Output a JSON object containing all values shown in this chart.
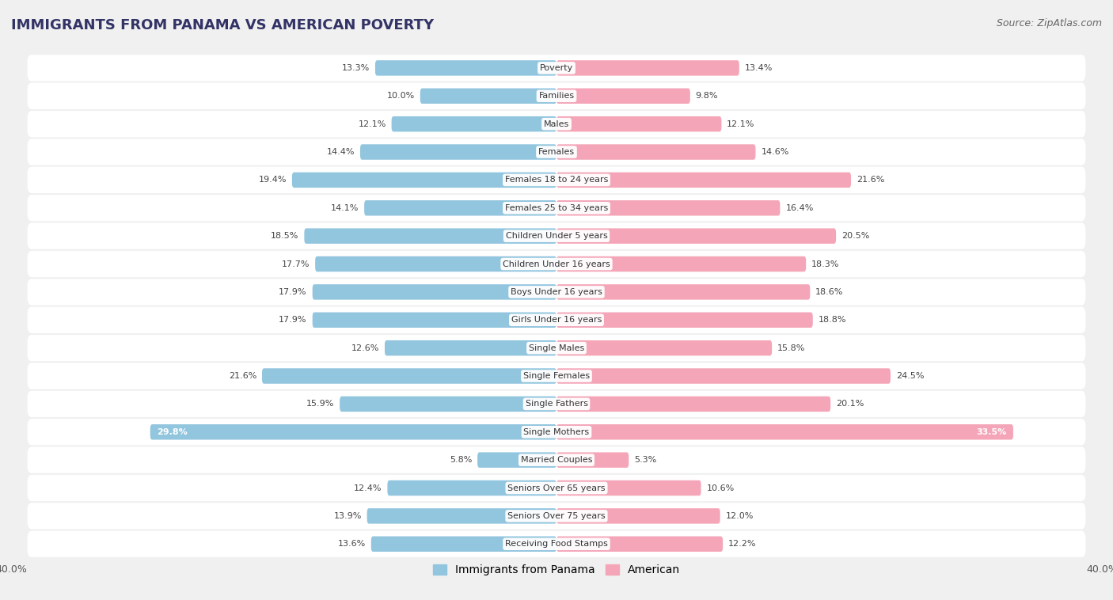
{
  "title": "IMMIGRANTS FROM PANAMA VS AMERICAN POVERTY",
  "source": "Source: ZipAtlas.com",
  "categories": [
    "Poverty",
    "Families",
    "Males",
    "Females",
    "Females 18 to 24 years",
    "Females 25 to 34 years",
    "Children Under 5 years",
    "Children Under 16 years",
    "Boys Under 16 years",
    "Girls Under 16 years",
    "Single Males",
    "Single Females",
    "Single Fathers",
    "Single Mothers",
    "Married Couples",
    "Seniors Over 65 years",
    "Seniors Over 75 years",
    "Receiving Food Stamps"
  ],
  "panama_values": [
    13.3,
    10.0,
    12.1,
    14.4,
    19.4,
    14.1,
    18.5,
    17.7,
    17.9,
    17.9,
    12.6,
    21.6,
    15.9,
    29.8,
    5.8,
    12.4,
    13.9,
    13.6
  ],
  "american_values": [
    13.4,
    9.8,
    12.1,
    14.6,
    21.6,
    16.4,
    20.5,
    18.3,
    18.6,
    18.8,
    15.8,
    24.5,
    20.1,
    33.5,
    5.3,
    10.6,
    12.0,
    12.2
  ],
  "panama_color": "#92c5de",
  "american_color": "#f4a6b8",
  "background_color": "#f0f0f0",
  "row_bg_color": "#e8e8e8",
  "bar_bg_color": "#ffffff",
  "xlim": 40.0,
  "bar_height": 0.55,
  "legend_panama": "Immigrants from Panama",
  "legend_american": "American"
}
